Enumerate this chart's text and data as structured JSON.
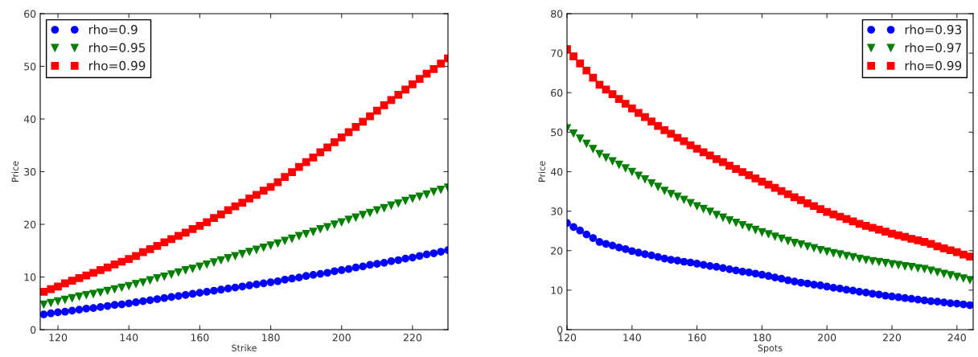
{
  "chart_data": [
    {
      "type": "scatter",
      "xlabel": "Strike",
      "ylabel": "Price",
      "xlim": [
        115,
        230
      ],
      "xticks": [
        120,
        140,
        160,
        180,
        200,
        220
      ],
      "ylim": [
        0,
        60
      ],
      "yticks": [
        0,
        10,
        20,
        30,
        40,
        50,
        60
      ],
      "grid": false,
      "legend": "top left",
      "x": [
        116,
        118,
        120,
        122,
        124,
        126,
        128,
        130,
        132,
        134,
        136,
        138,
        140,
        142,
        144,
        146,
        148,
        150,
        152,
        154,
        156,
        158,
        160,
        162,
        164,
        166,
        168,
        170,
        172,
        174,
        176,
        178,
        180,
        182,
        184,
        186,
        188,
        190,
        192,
        194,
        196,
        198,
        200,
        202,
        204,
        206,
        208,
        210,
        212,
        214,
        216,
        218,
        220,
        222,
        224,
        226,
        228,
        230
      ],
      "series": [
        {
          "name": "rho=0.9",
          "color": "#0000ff",
          "marker": "circle",
          "values": [
            2.9,
            3.1,
            3.3,
            3.4,
            3.6,
            3.8,
            4.0,
            4.1,
            4.3,
            4.5,
            4.7,
            4.8,
            5.0,
            5.2,
            5.4,
            5.6,
            5.8,
            6.0,
            6.2,
            6.4,
            6.6,
            6.8,
            7.0,
            7.2,
            7.4,
            7.6,
            7.8,
            8.0,
            8.2,
            8.4,
            8.6,
            8.8,
            9.0,
            9.2,
            9.5,
            9.7,
            9.9,
            10.2,
            10.4,
            10.6,
            10.8,
            11.1,
            11.3,
            11.5,
            11.8,
            12.0,
            12.3,
            12.5,
            12.7,
            13.0,
            13.2,
            13.5,
            13.7,
            14.0,
            14.3,
            14.5,
            14.8,
            15.1
          ]
        },
        {
          "name": "rho=0.95",
          "color": "#007f00",
          "marker": "triangle",
          "values": [
            4.8,
            5.1,
            5.4,
            5.7,
            6.0,
            6.3,
            6.6,
            6.8,
            7.1,
            7.4,
            7.7,
            8.0,
            8.3,
            8.7,
            9.0,
            9.4,
            9.8,
            10.1,
            10.5,
            10.9,
            11.3,
            11.6,
            12.0,
            12.4,
            12.8,
            13.2,
            13.6,
            14.0,
            14.4,
            14.8,
            15.2,
            15.6,
            16.0,
            16.4,
            16.9,
            17.3,
            17.8,
            18.2,
            18.6,
            19.1,
            19.5,
            20.0,
            20.4,
            20.9,
            21.3,
            21.8,
            22.2,
            22.7,
            23.1,
            23.6,
            24.0,
            24.5,
            24.9,
            25.3,
            25.7,
            26.2,
            26.6,
            27.0
          ]
        },
        {
          "name": "rho=0.99",
          "color": "#ff0000",
          "marker": "square",
          "values": [
            7.2,
            7.7,
            8.2,
            8.8,
            9.3,
            9.8,
            10.3,
            10.8,
            11.3,
            11.8,
            12.4,
            12.9,
            13.4,
            14.0,
            14.7,
            15.3,
            15.9,
            16.6,
            17.2,
            17.8,
            18.4,
            19.1,
            19.7,
            20.4,
            21.2,
            21.9,
            22.7,
            23.4,
            24.1,
            24.9,
            25.6,
            26.4,
            27.1,
            28.0,
            29.0,
            29.9,
            30.9,
            31.8,
            32.7,
            33.7,
            34.6,
            35.6,
            36.5,
            37.5,
            38.5,
            39.5,
            40.5,
            41.6,
            42.6,
            43.6,
            44.6,
            45.6,
            46.6,
            47.6,
            48.6,
            49.5,
            50.5,
            51.5
          ]
        }
      ]
    },
    {
      "type": "scatter",
      "xlabel": "Spots",
      "ylabel": "Price",
      "xlim": [
        120,
        245
      ],
      "xticks": [
        120,
        140,
        160,
        180,
        200,
        220,
        240
      ],
      "ylim": [
        0,
        80
      ],
      "yticks": [
        0,
        10,
        20,
        30,
        40,
        50,
        60,
        70,
        80
      ],
      "grid": false,
      "legend": "top right",
      "x": [
        120,
        122,
        124,
        126,
        128,
        130,
        132,
        134,
        136,
        138,
        140,
        142,
        144,
        146,
        148,
        150,
        152,
        154,
        156,
        158,
        160,
        162,
        164,
        166,
        168,
        170,
        172,
        174,
        176,
        178,
        180,
        182,
        184,
        186,
        188,
        190,
        192,
        194,
        196,
        198,
        200,
        202,
        204,
        206,
        208,
        210,
        212,
        214,
        216,
        218,
        220,
        222,
        224,
        226,
        228,
        230,
        232,
        234,
        236,
        238,
        240,
        242,
        244
      ],
      "series": [
        {
          "name": "rho=0.93",
          "color": "#0000ff",
          "marker": "circle",
          "values": [
            27.0,
            26.0,
            25.1,
            24.1,
            23.2,
            22.2,
            21.7,
            21.3,
            20.8,
            20.4,
            19.9,
            19.5,
            19.1,
            18.8,
            18.4,
            18.0,
            17.7,
            17.5,
            17.2,
            17.0,
            16.7,
            16.4,
            16.1,
            15.9,
            15.6,
            15.3,
            15.0,
            14.7,
            14.5,
            14.2,
            13.9,
            13.6,
            13.2,
            12.9,
            12.5,
            12.2,
            11.9,
            11.7,
            11.4,
            11.2,
            10.9,
            10.6,
            10.4,
            10.1,
            9.9,
            9.6,
            9.4,
            9.1,
            8.9,
            8.6,
            8.4,
            8.2,
            8.0,
            7.8,
            7.6,
            7.4,
            7.2,
            7.1,
            6.9,
            6.7,
            6.6,
            6.4,
            6.2
          ]
        },
        {
          "name": "rho=0.97",
          "color": "#007f00",
          "marker": "triangle",
          "values": [
            51.0,
            49.7,
            48.4,
            47.1,
            45.8,
            44.5,
            43.6,
            42.7,
            41.8,
            40.9,
            40.0,
            39.0,
            38.1,
            37.1,
            36.2,
            35.2,
            34.4,
            33.7,
            32.9,
            32.1,
            31.3,
            30.6,
            29.9,
            29.1,
            28.4,
            27.7,
            27.1,
            26.5,
            25.9,
            25.3,
            24.7,
            24.2,
            23.6,
            23.1,
            22.5,
            22.0,
            21.6,
            21.1,
            20.7,
            20.2,
            19.8,
            19.4,
            19.1,
            18.7,
            18.4,
            18.0,
            17.7,
            17.4,
            17.2,
            16.9,
            16.6,
            16.4,
            16.1,
            15.9,
            15.6,
            15.4,
            15.0,
            14.6,
            14.2,
            13.8,
            13.4,
            13.0,
            12.6
          ]
        },
        {
          "name": "rho=0.99",
          "color": "#ff0000",
          "marker": "square",
          "values": [
            71.0,
            69.2,
            67.4,
            65.6,
            63.8,
            62.0,
            60.8,
            59.6,
            58.4,
            57.2,
            56.0,
            54.9,
            53.8,
            52.7,
            51.6,
            50.5,
            49.6,
            48.6,
            47.7,
            46.7,
            45.8,
            44.9,
            44.1,
            43.2,
            42.4,
            41.5,
            40.7,
            39.9,
            39.1,
            38.3,
            37.5,
            36.7,
            35.9,
            35.1,
            34.3,
            33.5,
            32.8,
            32.0,
            31.3,
            30.5,
            29.8,
            29.2,
            28.6,
            28.0,
            27.4,
            26.8,
            26.3,
            25.8,
            25.3,
            24.8,
            24.3,
            23.9,
            23.5,
            23.0,
            22.6,
            22.2,
            21.7,
            21.1,
            20.6,
            20.1,
            19.6,
            19.0,
            18.5
          ]
        }
      ]
    }
  ]
}
